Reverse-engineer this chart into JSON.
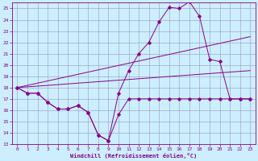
{
  "bg_color": "#cceeff",
  "grid_color": "#9999bb",
  "line_color": "#880088",
  "xlabel": "Windchill (Refroidissement éolien,°C)",
  "xlim": [
    -0.5,
    23.5
  ],
  "ylim": [
    13,
    25.5
  ],
  "yticks": [
    13,
    14,
    15,
    16,
    17,
    18,
    19,
    20,
    21,
    22,
    23,
    24,
    25
  ],
  "xticks": [
    0,
    1,
    2,
    3,
    4,
    5,
    6,
    7,
    8,
    9,
    10,
    11,
    12,
    13,
    14,
    15,
    16,
    17,
    18,
    19,
    20,
    21,
    22,
    23
  ],
  "line1_x": [
    0,
    1,
    2,
    3,
    4,
    5,
    6,
    7,
    8,
    9,
    10,
    11,
    12,
    13,
    14,
    15,
    16,
    17,
    18,
    19,
    20,
    21,
    22,
    23
  ],
  "line1_y": [
    18,
    17.5,
    17.5,
    16.7,
    16.1,
    16.1,
    16.4,
    15.8,
    13.8,
    13.3,
    15.6,
    17.0,
    17.0,
    17.0,
    17.0,
    17.0,
    17.0,
    17.0,
    17.0,
    17.0,
    17.0,
    17.0,
    17.0,
    17.0
  ],
  "line2_x": [
    0,
    1,
    2,
    3,
    4,
    5,
    6,
    7,
    8,
    9,
    10,
    11,
    12,
    13,
    14,
    15,
    16,
    17,
    18,
    19,
    20,
    21,
    22,
    23
  ],
  "line2_y": [
    18,
    17.5,
    17.5,
    16.7,
    16.1,
    16.1,
    16.4,
    15.8,
    13.8,
    13.3,
    17.5,
    19.5,
    21.0,
    22.0,
    23.8,
    25.1,
    25.0,
    25.6,
    24.3,
    20.5,
    20.3,
    17.0,
    17.0,
    17.0
  ],
  "line3_x": [
    0,
    23
  ],
  "line3_y": [
    18,
    22.5
  ],
  "line4_x": [
    0,
    23
  ],
  "line4_y": [
    18,
    19.5
  ]
}
